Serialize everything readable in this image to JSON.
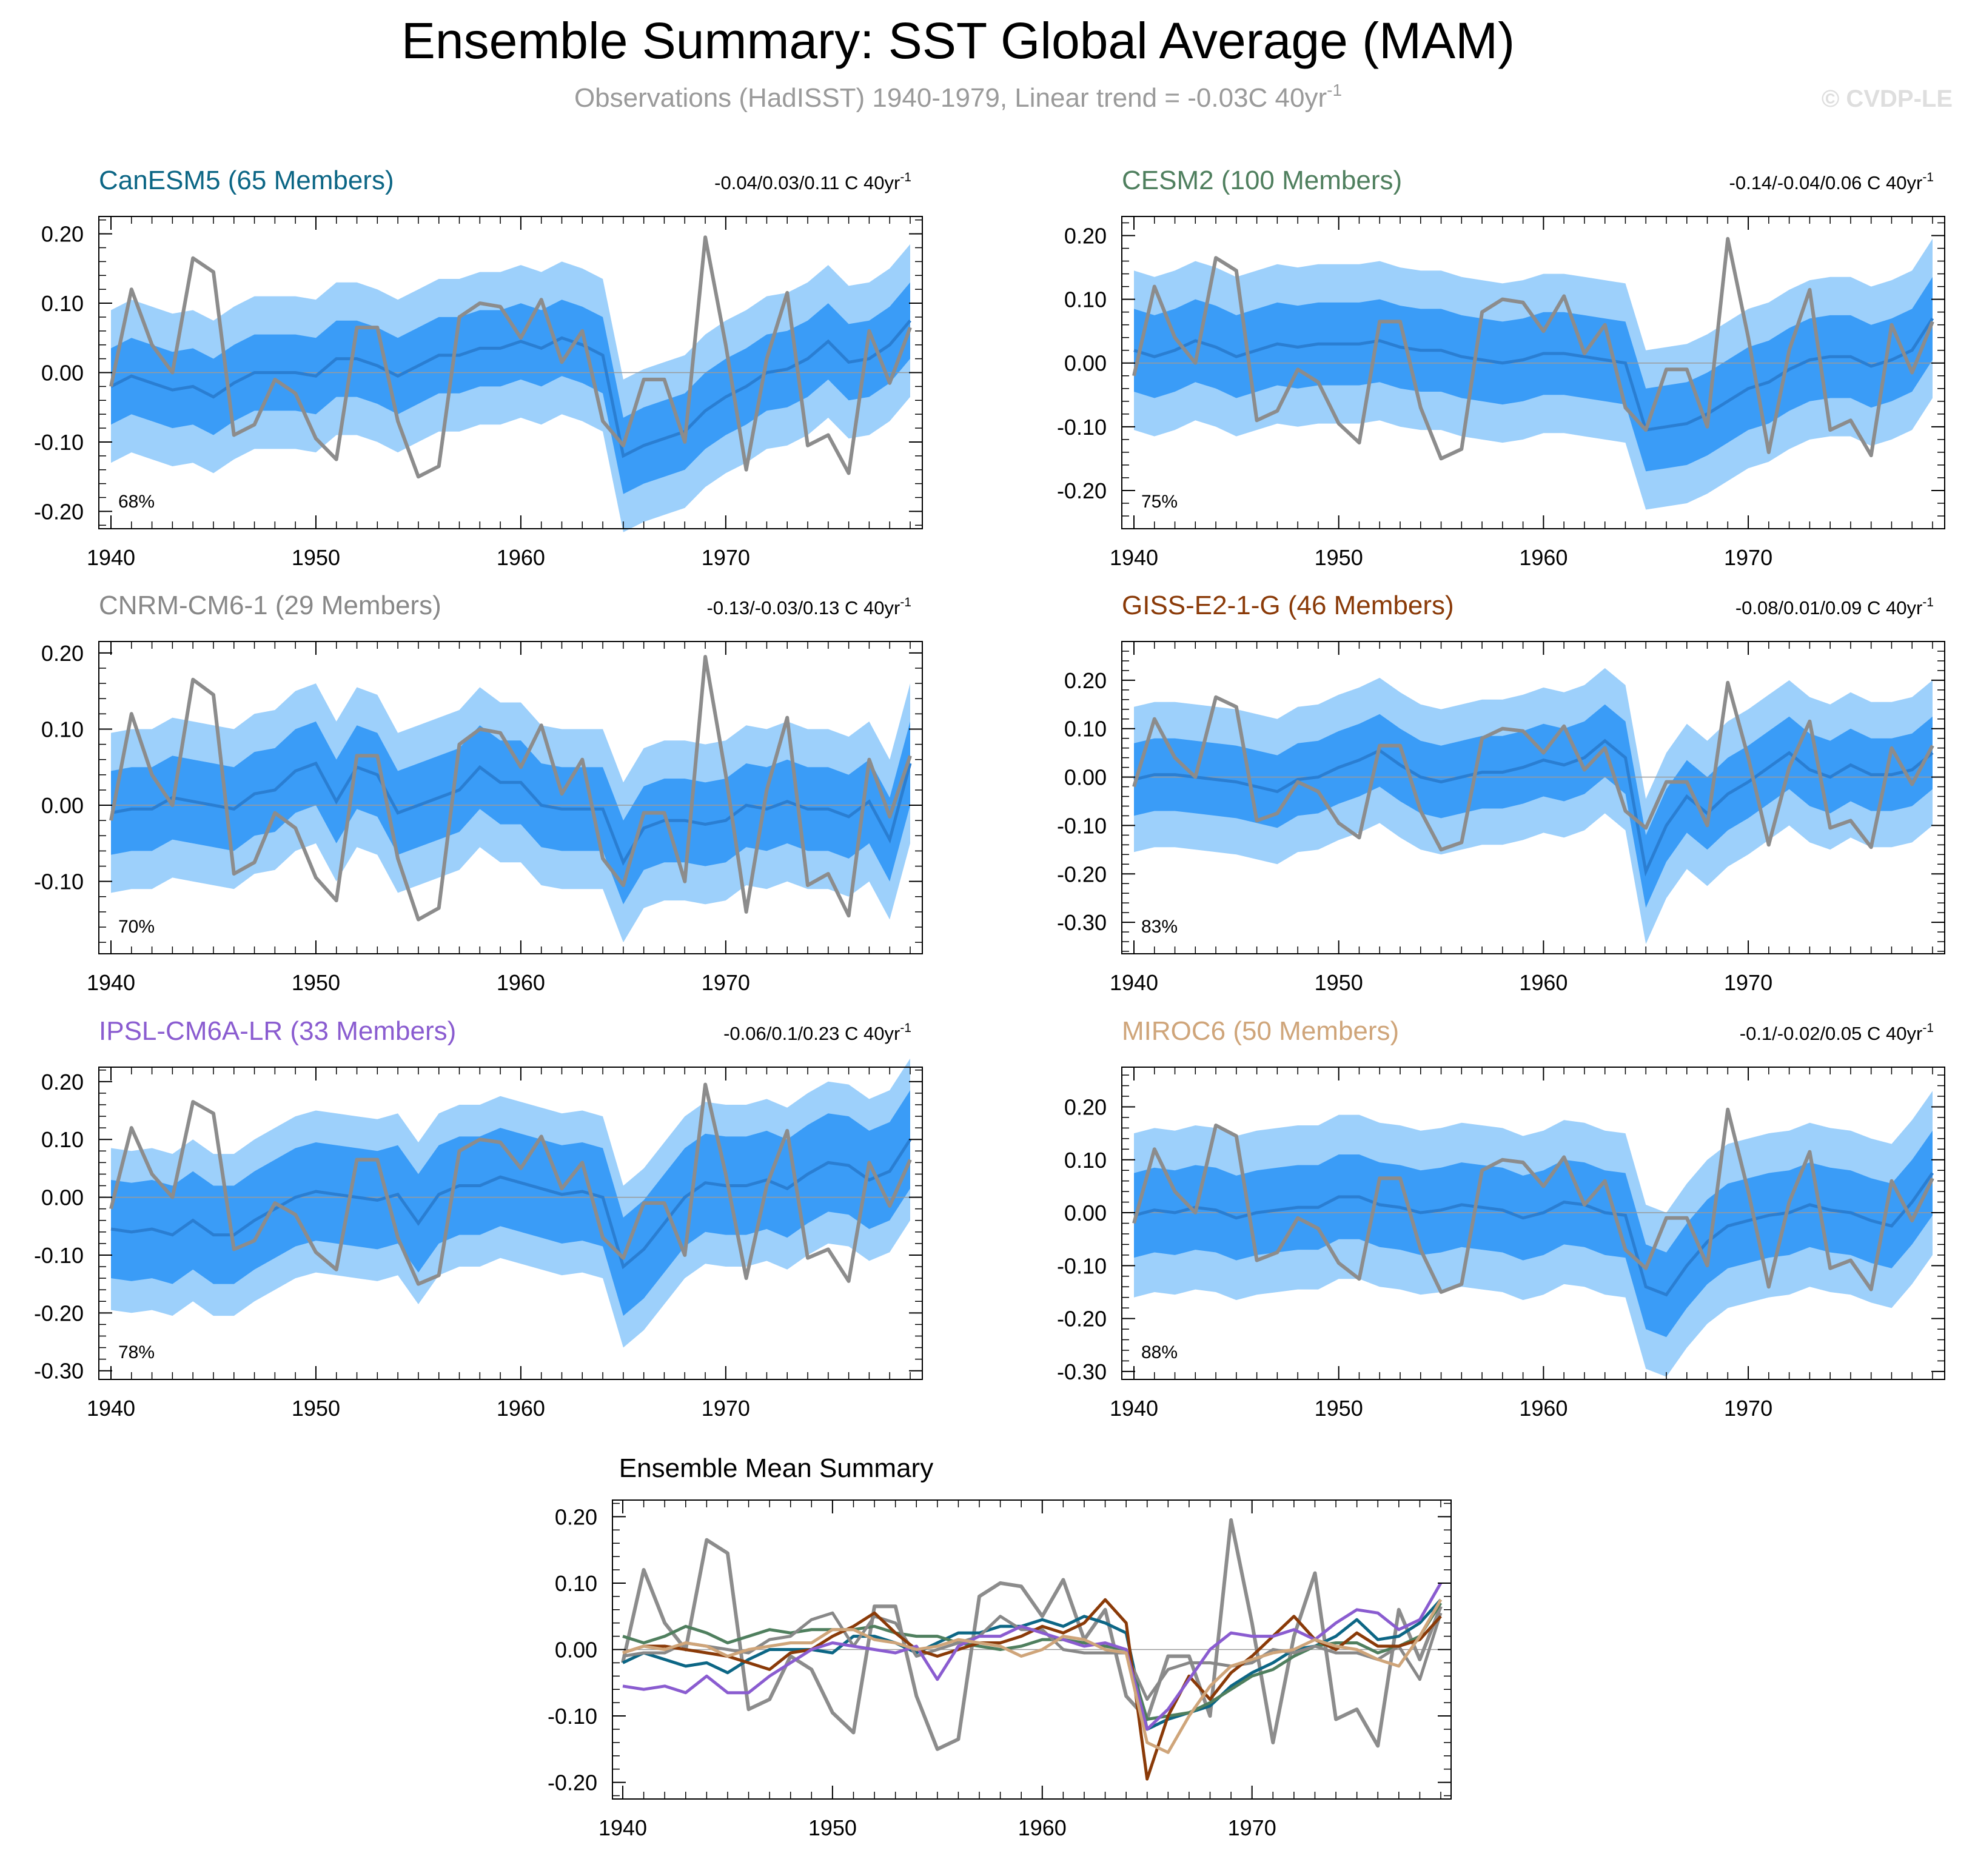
{
  "title": "Ensemble Summary: SST Global Average (MAM)",
  "subtitle": "Observations (HadISST) 1940-1979, Linear trend = -0.03C 40yr",
  "subtitle_sup": "-1",
  "watermark": "© CVDP-LE",
  "colors": {
    "obs": "#8c8c8c",
    "band_outer": "#9dd0fb",
    "band_inner": "#3a9cf7",
    "ens_mean": "#2a7ed2",
    "zero_line": "#9a9a9a",
    "CanESM5": "#0c6685",
    "CESM2": "#4f7f5e",
    "CNRM-CM6-1": "#888888",
    "GISS-E2-1-G": "#8a3a08",
    "IPSL-CM6A-LR": "#8a5cd0",
    "MIROC6": "#cfa57a"
  },
  "chart_data": {
    "years": [
      1940,
      1941,
      1942,
      1943,
      1944,
      1945,
      1946,
      1947,
      1948,
      1949,
      1950,
      1951,
      1952,
      1953,
      1954,
      1955,
      1956,
      1957,
      1958,
      1959,
      1960,
      1961,
      1962,
      1963,
      1964,
      1965,
      1966,
      1967,
      1968,
      1969,
      1970,
      1971,
      1972,
      1973,
      1974,
      1975,
      1976,
      1977,
      1978,
      1979
    ],
    "observations": {
      "name": "HadISST",
      "values": [
        -0.02,
        0.12,
        0.04,
        0.0,
        0.165,
        0.145,
        -0.09,
        -0.075,
        -0.01,
        -0.03,
        -0.095,
        -0.125,
        0.065,
        0.065,
        -0.07,
        -0.15,
        -0.135,
        0.08,
        0.1,
        0.095,
        0.05,
        0.105,
        0.015,
        0.06,
        -0.07,
        -0.105,
        -0.01,
        -0.01,
        -0.1,
        0.195,
        0.04,
        -0.14,
        0.02,
        0.115,
        -0.105,
        -0.09,
        -0.145,
        0.06,
        -0.015,
        0.065
      ]
    },
    "panels": [
      {
        "model": "CanESM5",
        "title": "CanESM5 (65 Members)",
        "trend": "-0.04/0.03/0.11 C 40yr",
        "pct": "68%",
        "yticks": [
          "0.20",
          "0.10",
          "0.00",
          "-0.10",
          "-0.20"
        ],
        "ylim": [
          -0.225,
          0.225
        ],
        "mean": [
          -0.02,
          -0.005,
          -0.015,
          -0.025,
          -0.02,
          -0.035,
          -0.015,
          0.0,
          0.0,
          0.0,
          -0.005,
          0.02,
          0.02,
          0.01,
          -0.005,
          0.01,
          0.025,
          0.025,
          0.035,
          0.035,
          0.045,
          0.035,
          0.05,
          0.04,
          0.025,
          -0.12,
          -0.105,
          -0.095,
          -0.085,
          -0.055,
          -0.035,
          -0.02,
          0.0,
          0.005,
          0.02,
          0.045,
          0.015,
          0.02,
          0.04,
          0.075
        ],
        "inner_half": 0.055,
        "outer_half": 0.11,
        "xticks": [
          "1940",
          "1950",
          "1960",
          "1970"
        ]
      },
      {
        "model": "CESM2",
        "title": "CESM2 (100 Members)",
        "trend": "-0.14/-0.04/0.06 C 40yr",
        "pct": "75%",
        "yticks": [
          "0.20",
          "0.10",
          "0.00",
          "-0.10",
          "-0.20"
        ],
        "ylim": [
          -0.26,
          0.23
        ],
        "mean": [
          0.02,
          0.01,
          0.02,
          0.035,
          0.025,
          0.01,
          0.02,
          0.03,
          0.025,
          0.03,
          0.03,
          0.03,
          0.035,
          0.025,
          0.02,
          0.02,
          0.01,
          0.005,
          0.0,
          0.005,
          0.015,
          0.015,
          0.01,
          0.005,
          0.0,
          -0.105,
          -0.1,
          -0.095,
          -0.08,
          -0.06,
          -0.04,
          -0.03,
          -0.01,
          0.005,
          0.01,
          0.01,
          -0.005,
          0.005,
          0.02,
          0.07
        ],
        "inner_half": 0.065,
        "outer_half": 0.125,
        "xticks": [
          "1940",
          "1950",
          "1960",
          "1970"
        ]
      },
      {
        "model": "CNRM-CM6-1",
        "title": "CNRM-CM6-1 (29 Members)",
        "trend": "-0.13/-0.03/0.13 C 40yr",
        "pct": "70%",
        "yticks": [
          "0.20",
          "0.10",
          "0.00",
          "-0.10"
        ],
        "ylim": [
          -0.195,
          0.215
        ],
        "mean": [
          -0.01,
          -0.005,
          -0.005,
          0.01,
          0.005,
          0.0,
          -0.005,
          0.015,
          0.02,
          0.045,
          0.055,
          0.005,
          0.05,
          0.04,
          -0.01,
          0.0,
          0.01,
          0.02,
          0.05,
          0.03,
          0.03,
          0.0,
          -0.005,
          -0.005,
          -0.005,
          -0.075,
          -0.03,
          -0.02,
          -0.02,
          -0.025,
          -0.02,
          0.0,
          -0.005,
          0.005,
          -0.005,
          -0.005,
          -0.015,
          0.005,
          -0.045,
          0.055
        ],
        "inner_half": 0.055,
        "outer_half": 0.105,
        "xticks": [
          "1940",
          "1950",
          "1960",
          "1970"
        ]
      },
      {
        "model": "GISS-E2-1-G",
        "title": "GISS-E2-1-G (46 Members)",
        "trend": "-0.08/0.01/0.09 C 40yr",
        "pct": "83%",
        "yticks": [
          "0.20",
          "0.10",
          "0.00",
          "-0.10",
          "-0.20",
          "-0.30"
        ],
        "ylim": [
          -0.365,
          0.28
        ],
        "mean": [
          -0.005,
          0.005,
          0.005,
          0.0,
          -0.005,
          -0.01,
          -0.02,
          -0.03,
          -0.005,
          0.0,
          0.02,
          0.035,
          0.055,
          0.025,
          0.0,
          -0.01,
          0.0,
          0.01,
          0.01,
          0.02,
          0.035,
          0.025,
          0.04,
          0.075,
          0.04,
          -0.195,
          -0.1,
          -0.04,
          -0.075,
          -0.035,
          -0.01,
          0.02,
          0.05,
          0.015,
          0.0,
          0.025,
          0.005,
          0.005,
          0.015,
          0.05
        ],
        "inner_half": 0.075,
        "outer_half": 0.15,
        "xticks": [
          "1940",
          "1950",
          "1960",
          "1970"
        ]
      },
      {
        "model": "IPSL-CM6A-LR",
        "title": "IPSL-CM6A-LR (33 Members)",
        "trend": "-0.06/0.1/0.23 C 40yr",
        "pct": "78%",
        "yticks": [
          "0.20",
          "0.10",
          "0.00",
          "-0.10",
          "-0.20",
          "-0.30"
        ],
        "ylim": [
          -0.315,
          0.225
        ],
        "mean": [
          -0.055,
          -0.06,
          -0.055,
          -0.065,
          -0.04,
          -0.065,
          -0.065,
          -0.04,
          -0.02,
          0.0,
          0.01,
          0.005,
          0.0,
          -0.005,
          0.005,
          -0.045,
          0.005,
          0.02,
          0.02,
          0.035,
          0.025,
          0.015,
          0.005,
          0.01,
          0.0,
          -0.12,
          -0.09,
          -0.045,
          0.0,
          0.025,
          0.02,
          0.02,
          0.03,
          0.015,
          0.04,
          0.06,
          0.055,
          0.03,
          0.045,
          0.1
        ],
        "inner_half": 0.085,
        "outer_half": 0.14,
        "xticks": [
          "1940",
          "1950",
          "1960",
          "1970"
        ]
      },
      {
        "model": "MIROC6",
        "title": "MIROC6 (50 Members)",
        "trend": "-0.1/-0.02/0.05 C 40yr",
        "pct": "88%",
        "yticks": [
          "0.20",
          "0.10",
          "0.00",
          "-0.10",
          "-0.20",
          "-0.30"
        ],
        "ylim": [
          -0.315,
          0.275
        ],
        "mean": [
          -0.005,
          0.005,
          0.0,
          0.01,
          0.005,
          -0.01,
          0.0,
          0.005,
          0.01,
          0.01,
          0.03,
          0.03,
          0.015,
          0.01,
          0.0,
          0.005,
          0.015,
          0.01,
          0.005,
          -0.01,
          0.0,
          0.02,
          0.015,
          0.0,
          -0.005,
          -0.14,
          -0.155,
          -0.1,
          -0.055,
          -0.025,
          -0.015,
          -0.005,
          0.0,
          0.015,
          0.005,
          0.0,
          -0.015,
          -0.025,
          0.02,
          0.075
        ],
        "inner_half": 0.08,
        "outer_half": 0.155,
        "xticks": [
          "1940",
          "1950",
          "1960",
          "1970"
        ]
      }
    ],
    "summary": {
      "title": "Ensemble Mean Summary",
      "yticks": [
        "0.20",
        "0.10",
        "0.00",
        "-0.10",
        "-0.20"
      ],
      "ylim": [
        -0.225,
        0.225
      ],
      "xticks": [
        "1940",
        "1950",
        "1960",
        "1970"
      ]
    }
  }
}
